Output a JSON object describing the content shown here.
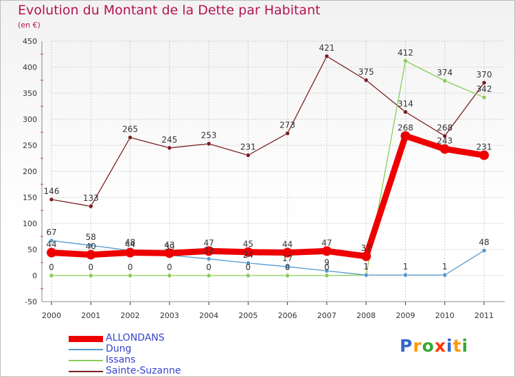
{
  "header": {
    "title": "Evolution du Montant de la Dette par Habitant",
    "subtitle": "(en €)"
  },
  "colors": {
    "title": "#b5124f",
    "legend_text": "#3344cc",
    "grid": "#cccccc"
  },
  "logo": {
    "text": "Proxiti",
    "letters": [
      "P",
      "r",
      "o",
      "x",
      "i",
      "t",
      "i"
    ],
    "colors": [
      "#3366cc",
      "#ff9900",
      "#33aa33",
      "#ff3300",
      "#3366cc",
      "#ff9900",
      "#33aa33"
    ]
  },
  "chart_data": {
    "type": "line",
    "title": "Evolution du Montant de la Dette par Habitant",
    "subtitle": "(en €)",
    "x": [
      "2000",
      "2001",
      "2002",
      "2003",
      "2004",
      "2005",
      "2006",
      "2007",
      "2008",
      "2009",
      "2010",
      "2011"
    ],
    "ylim": [
      -50,
      450
    ],
    "yticks": [
      "-50",
      "0",
      "50",
      "100",
      "150",
      "200",
      "250",
      "300",
      "350",
      "400",
      "450"
    ],
    "grid": true,
    "legend_position": "bottom-left",
    "series": [
      {
        "name": "ALLONDANS",
        "color": "#ee0000",
        "width": 9,
        "dot": 7,
        "values": [
          44,
          40,
          44,
          43,
          47,
          45,
          44,
          47,
          37,
          268,
          243,
          231
        ],
        "labels": [
          "44",
          "40",
          "44",
          "43",
          "47",
          "45",
          "44",
          "47",
          "37",
          "268",
          "243",
          "231"
        ]
      },
      {
        "name": "Dung",
        "color": "#5599cc",
        "width": 1.3,
        "dot": 3,
        "values": [
          67,
          58,
          48,
          39,
          32,
          24,
          17,
          9,
          1,
          1,
          1,
          48
        ],
        "labels": [
          "67",
          "58",
          "48",
          "39",
          "32",
          "24",
          "17",
          "9",
          "1",
          "1",
          "1",
          "48"
        ]
      },
      {
        "name": "Issans",
        "color": "#88cc55",
        "width": 1.3,
        "dot": 3,
        "values": [
          0,
          0,
          0,
          0,
          0,
          0,
          0,
          0,
          1,
          412,
          374,
          342
        ],
        "labels": [
          "0",
          "0",
          "0",
          "0",
          "0",
          "0",
          "0",
          "0",
          "1",
          "412",
          "374",
          "342"
        ]
      },
      {
        "name": "Sainte-Suzanne",
        "color": "#7a1f22",
        "width": 1.3,
        "dot": 3,
        "values": [
          146,
          133,
          265,
          245,
          253,
          231,
          273,
          421,
          375,
          314,
          268,
          370
        ],
        "labels": [
          "146",
          "133",
          "265",
          "245",
          "253",
          "231",
          "273",
          "421",
          "375",
          "314",
          "268",
          "370"
        ]
      }
    ]
  }
}
